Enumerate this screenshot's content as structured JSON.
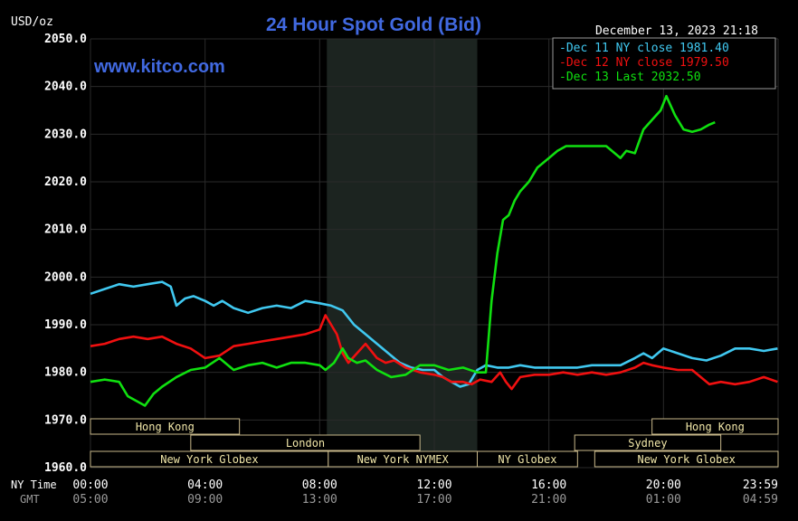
{
  "header": {
    "unit_label": "USD/oz",
    "title": "24 Hour Spot Gold (Bid)",
    "timestamp": "December 13, 2023 21:18",
    "watermark": "www.kitco.com"
  },
  "axis_labels": {
    "ny_time": "NY Time",
    "gmt": "GMT"
  },
  "colors": {
    "background": "#000000",
    "title": "#4169e1",
    "axis_text": "#ffffff",
    "grid": "#2a2a2a",
    "session_shade": "#1c2420",
    "session_border": "#c8b88a",
    "session_text": "#f0e6a8",
    "gmt_text": "#9a9a9a"
  },
  "chart_data": {
    "type": "line",
    "title": "24 Hour Spot Gold (Bid)",
    "ylabel": "USD/oz",
    "ylim": [
      1960,
      2050
    ],
    "yticks": [
      "2050.0",
      "2040.0",
      "2030.0",
      "2020.0",
      "2010.0",
      "2000.0",
      "1990.0",
      "1980.0",
      "1970.0",
      "1960.0"
    ],
    "xlim": [
      0,
      24
    ],
    "x_unit": "hours (NY time, 00:00 to 23:59)",
    "xticks_ny": [
      "00:00",
      "04:00",
      "08:00",
      "12:00",
      "16:00",
      "20:00",
      "23:59"
    ],
    "xticks_gmt": [
      "05:00",
      "09:00",
      "13:00",
      "17:00",
      "21:00",
      "01:00",
      "04:59"
    ],
    "grid": true,
    "legend_position": "top-right",
    "shaded_range": [
      8.25,
      13.5
    ],
    "series": [
      {
        "name": "Dec 11 NY close 1981.40",
        "color": "#40c8f0",
        "x": [
          0,
          0.5,
          1,
          1.5,
          2,
          2.5,
          2.8,
          3.0,
          3.3,
          3.6,
          4.0,
          4.3,
          4.6,
          5.0,
          5.5,
          6.0,
          6.5,
          7.0,
          7.5,
          8.0,
          8.4,
          8.8,
          9.2,
          9.6,
          10.0,
          10.4,
          10.8,
          11.2,
          11.6,
          12.0,
          12.3,
          12.6,
          12.9,
          13.2,
          13.5,
          13.8,
          14.2,
          14.6,
          15.0,
          15.5,
          16.0,
          16.5,
          17.0,
          17.5,
          18.0,
          18.5,
          19.0,
          19.3,
          19.6,
          20.0,
          20.5,
          21.0,
          21.5,
          22.0,
          22.5,
          23.0,
          23.5,
          23.98
        ],
        "y": [
          1996.5,
          1997.5,
          1998.5,
          1998.0,
          1998.5,
          1999.0,
          1998.0,
          1994.0,
          1995.5,
          1996.0,
          1995.0,
          1994.0,
          1995.0,
          1993.5,
          1992.5,
          1993.5,
          1994.0,
          1993.5,
          1995.0,
          1994.5,
          1994.0,
          1993.0,
          1990.0,
          1988.0,
          1986.0,
          1984.0,
          1982.0,
          1981.0,
          1980.5,
          1980.5,
          1979.0,
          1978.0,
          1977.0,
          1977.5,
          1980.5,
          1981.5,
          1981.0,
          1981.0,
          1981.5,
          1981.0,
          1981.0,
          1981.0,
          1981.0,
          1981.5,
          1981.5,
          1981.5,
          1983.0,
          1984.0,
          1983.0,
          1985.0,
          1984.0,
          1983.0,
          1982.5,
          1983.5,
          1985.0,
          1985.0,
          1984.5,
          1985.0
        ]
      },
      {
        "name": "Dec 12 NY close 1979.50",
        "color": "#f01010",
        "x": [
          0,
          0.5,
          1,
          1.5,
          2,
          2.5,
          3.0,
          3.5,
          4.0,
          4.5,
          5.0,
          5.5,
          6.0,
          6.5,
          7.0,
          7.5,
          8.0,
          8.2,
          8.4,
          8.6,
          8.8,
          9.0,
          9.3,
          9.6,
          10.0,
          10.3,
          10.6,
          11.0,
          11.5,
          12.0,
          12.3,
          12.6,
          13.0,
          13.3,
          13.6,
          14.0,
          14.3,
          14.5,
          14.7,
          15.0,
          15.5,
          16.0,
          16.5,
          17.0,
          17.5,
          18.0,
          18.5,
          19.0,
          19.3,
          19.6,
          20.0,
          20.5,
          21.0,
          21.3,
          21.6,
          22.0,
          22.5,
          23.0,
          23.5,
          23.98
        ],
        "y": [
          1985.5,
          1986.0,
          1987.0,
          1987.5,
          1987.0,
          1987.5,
          1986.0,
          1985.0,
          1983.0,
          1983.5,
          1985.5,
          1986.0,
          1986.5,
          1987.0,
          1987.5,
          1988.0,
          1989.0,
          1992.0,
          1990.0,
          1988.0,
          1984.0,
          1982.0,
          1984.0,
          1986.0,
          1983.0,
          1982.0,
          1982.5,
          1981.0,
          1980.0,
          1979.5,
          1979.0,
          1978.0,
          1978.0,
          1977.5,
          1978.5,
          1978.0,
          1980.0,
          1978.0,
          1976.5,
          1979.0,
          1979.5,
          1979.5,
          1980.0,
          1979.5,
          1980.0,
          1979.5,
          1980.0,
          1981.0,
          1982.0,
          1981.5,
          1981.0,
          1980.5,
          1980.5,
          1979.0,
          1977.5,
          1978.0,
          1977.5,
          1978.0,
          1979.0,
          1978.0
        ]
      },
      {
        "name": "Dec 13 Last 2032.50",
        "color": "#10e010",
        "x": [
          0,
          0.5,
          1.0,
          1.3,
          1.6,
          1.9,
          2.2,
          2.5,
          3.0,
          3.5,
          4.0,
          4.5,
          5.0,
          5.5,
          6.0,
          6.5,
          7.0,
          7.5,
          8.0,
          8.2,
          8.5,
          8.8,
          9.0,
          9.3,
          9.6,
          10.0,
          10.5,
          11.0,
          11.5,
          12.0,
          12.5,
          13.0,
          13.5,
          13.8,
          14.0,
          14.2,
          14.4,
          14.6,
          14.8,
          15.0,
          15.3,
          15.6,
          16.0,
          16.3,
          16.6,
          17.0,
          17.5,
          18.0,
          18.5,
          18.7,
          19.0,
          19.3,
          19.6,
          19.9,
          20.1,
          20.4,
          20.7,
          21.0,
          21.3,
          21.6,
          21.8
        ],
        "y": [
          1978.0,
          1978.5,
          1978.0,
          1975.0,
          1974.0,
          1973.0,
          1975.5,
          1977.0,
          1979.0,
          1980.5,
          1981.0,
          1983.0,
          1980.5,
          1981.5,
          1982.0,
          1981.0,
          1982.0,
          1982.0,
          1981.5,
          1980.5,
          1982.0,
          1985.0,
          1983.0,
          1982.0,
          1982.5,
          1980.5,
          1979.0,
          1979.5,
          1981.5,
          1981.5,
          1980.5,
          1981.0,
          1980.0,
          1980.0,
          1995.0,
          2005.0,
          2012.0,
          2013.0,
          2016.0,
          2018.0,
          2020.0,
          2023.0,
          2025.0,
          2026.5,
          2027.5,
          2027.5,
          2027.5,
          2027.5,
          2025.0,
          2026.5,
          2026.0,
          2031.0,
          2033.0,
          2035.0,
          2038.0,
          2034.0,
          2031.0,
          2030.5,
          2031.0,
          2032.0,
          2032.5
        ]
      }
    ]
  },
  "sessions": [
    {
      "label": "Hong Kong",
      "start": 0,
      "end": 5.2,
      "row": 0
    },
    {
      "label": "Hong Kong",
      "start": 19.6,
      "end": 24,
      "row": 0
    },
    {
      "label": "London",
      "start": 3.5,
      "end": 11.5,
      "row": 1
    },
    {
      "label": "Sydney",
      "start": 16.9,
      "end": 22.0,
      "row": 1
    },
    {
      "label": "New York Globex",
      "start": 0,
      "end": 8.3,
      "row": 2
    },
    {
      "label": "New York NYMEX",
      "start": 8.3,
      "end": 13.5,
      "row": 2
    },
    {
      "label": "NY Globex",
      "start": 13.5,
      "end": 17.0,
      "row": 2
    },
    {
      "label": "New York Globex",
      "start": 17.6,
      "end": 24,
      "row": 2
    }
  ]
}
